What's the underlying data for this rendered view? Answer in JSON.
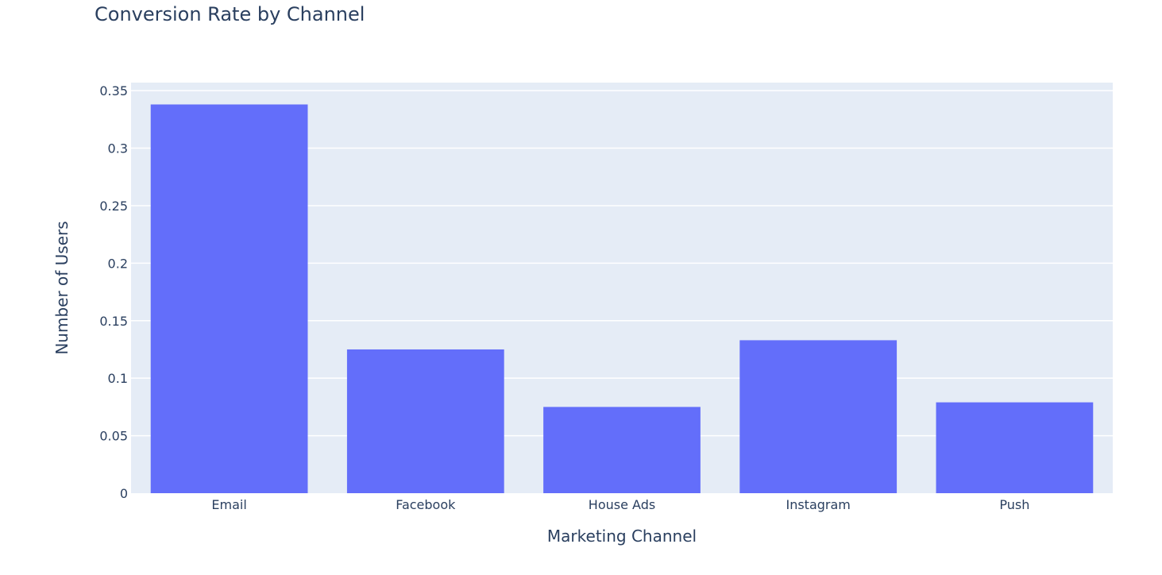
{
  "chart_data": {
    "type": "bar",
    "title": "Conversion Rate by Channel",
    "xlabel": "Marketing Channel",
    "ylabel": "Number of Users",
    "categories": [
      "Email",
      "Facebook",
      "House Ads",
      "Instagram",
      "Push"
    ],
    "values": [
      0.338,
      0.125,
      0.075,
      0.133,
      0.079
    ],
    "ylim": [
      0,
      0.35
    ],
    "yticks": [
      0,
      0.05,
      0.1,
      0.15,
      0.2,
      0.25,
      0.3,
      0.35
    ],
    "ytick_labels": [
      "0",
      "0.05",
      "0.1",
      "0.15",
      "0.2",
      "0.25",
      "0.3",
      "0.35"
    ],
    "grid": true,
    "colors": {
      "bar": "#636efa",
      "plot_bg": "#e5ecf6",
      "grid": "#ffffff",
      "text": "#2a3f5f"
    }
  }
}
